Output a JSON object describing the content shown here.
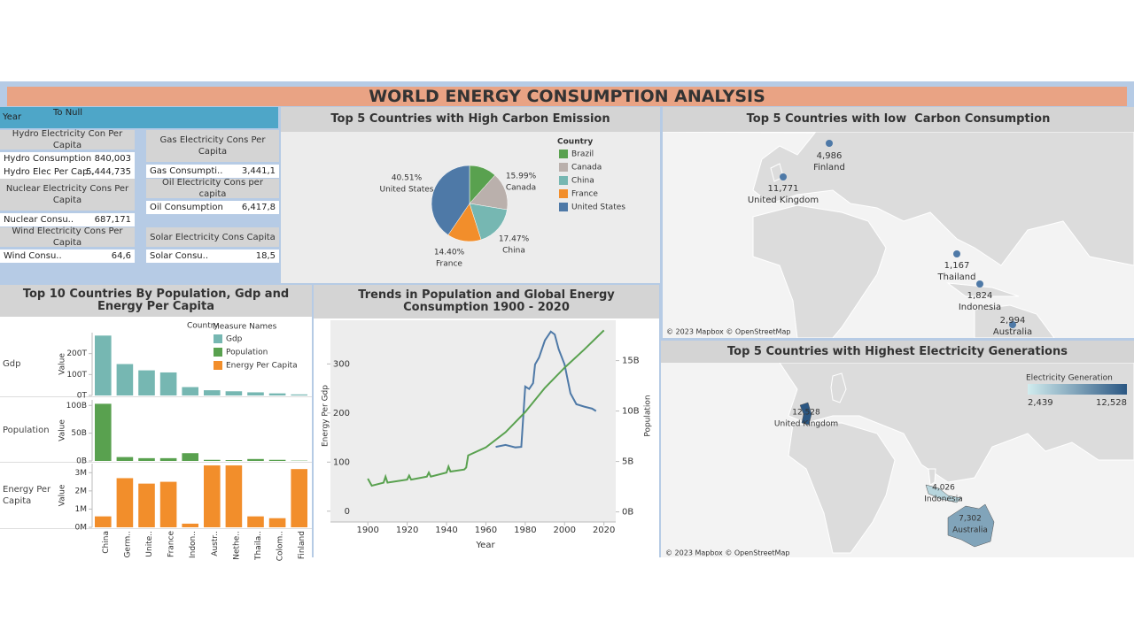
{
  "title": "WORLD ENERGY CONSUMPTION ANALYSIS",
  "filter": {
    "label": "Year",
    "value": "To Null"
  },
  "kpi_cards": [
    {
      "title": "Hydro Electricity Con Per Capita",
      "rows": [
        {
          "label": "Hydro Consumption",
          "value": "840,003"
        },
        {
          "label": "Hydro Elec Per Cap..",
          "value": "5,444,735"
        }
      ]
    },
    {
      "title": "Gas Electricity Cons Per Capita",
      "rows": [
        {
          "label": "Gas Consumpti..",
          "value": "3,441,1"
        }
      ]
    },
    {
      "title": "Nuclear Electricity Cons Per Capita",
      "rows": [
        {
          "label": "Nuclear Consu..",
          "value": "687,171"
        }
      ]
    },
    {
      "title": "Oil Electricity Cons per capita",
      "rows": [
        {
          "label": "Oil Consumption",
          "value": "6,417,8"
        }
      ]
    },
    {
      "title": "Wind Electricity Cons Per Capita",
      "rows": [
        {
          "label": "Wind Consu..",
          "value": "64,6"
        }
      ]
    },
    {
      "title": "Solar Electricity Cons Capita",
      "rows": [
        {
          "label": "Solar Consu..",
          "value": "18,5"
        }
      ]
    }
  ],
  "chart_data": [
    {
      "type": "pie",
      "title": "Top 5 Countries with High Carbon Emission",
      "legend_title": "Country",
      "categories": [
        "Brazil",
        "Canada",
        "China",
        "France",
        "United States"
      ],
      "values": [
        11.63,
        15.99,
        17.47,
        14.4,
        40.51
      ],
      "value_labels": [
        null,
        "15.99%",
        "17.47%",
        "14.40%",
        "40.51%"
      ],
      "colors": [
        "#59a14f",
        "#bab0ac",
        "#76b7b2",
        "#f28e2b",
        "#4e79a7"
      ]
    },
    {
      "type": "map",
      "map_style": "points",
      "title": "Top 5 Countries with low  Carbon Consumption",
      "categories": [
        "Finland",
        "United Kingdom",
        "Thailand",
        "Indonesia",
        "Australia"
      ],
      "values": [
        4986,
        11771,
        1167,
        1824,
        2994
      ],
      "value_labels": [
        "4,986",
        "11,771",
        "1,167",
        "1,824",
        "2,994"
      ],
      "color": "#4e79a7",
      "attribution": "© 2023 Mapbox © OpenStreetMap"
    },
    {
      "type": "bar",
      "title": "Top 10 Countries By Population, Gdp and Energy Per Capita",
      "column_header": "Country",
      "legend_title": "Measure Names",
      "y_label": "Value",
      "categories": [
        "China",
        "Germ..",
        "Unite..",
        "France",
        "Indon..",
        "Austr..",
        "Nethe..",
        "Thaila..",
        "Colom..",
        "Finland"
      ],
      "series": [
        {
          "name": "Gdp",
          "color": "#76b7b2",
          "values": [
            286,
            150,
            120,
            110,
            40,
            25,
            20,
            15,
            10,
            5
          ],
          "ylim": [
            0,
            300
          ],
          "yticks": [
            {
              "value": 0,
              "label": "0T"
            },
            {
              "value": 100,
              "label": "100T"
            },
            {
              "value": 200,
              "label": "200T"
            }
          ]
        },
        {
          "name": "Population",
          "color": "#59a14f",
          "values": [
            103,
            7,
            5,
            5,
            14,
            2,
            1.5,
            3.5,
            2,
            0.5
          ],
          "ylim": [
            0,
            110
          ],
          "yticks": [
            {
              "value": 0,
              "label": "0B"
            },
            {
              "value": 50,
              "label": "50B"
            },
            {
              "value": 100,
              "label": "100B"
            }
          ]
        },
        {
          "name": "Energy Per Capita",
          "color": "#f28e2b",
          "values": [
            0.6,
            2.7,
            2.4,
            2.5,
            0.2,
            3.4,
            3.4,
            0.6,
            0.5,
            3.2
          ],
          "ylim": [
            0,
            3.5
          ],
          "yticks": [
            {
              "value": 0,
              "label": "0M"
            },
            {
              "value": 1,
              "label": "1M"
            },
            {
              "value": 2,
              "label": "2M"
            },
            {
              "value": 3,
              "label": "3M"
            }
          ]
        }
      ]
    },
    {
      "type": "line",
      "title": "Trends in Population and Global Energy Consumption 1900 - 2020",
      "x_label": "Year",
      "xlim": [
        1881,
        2026
      ],
      "xticks": [
        1900,
        1920,
        1940,
        1960,
        1980,
        2000,
        2020
      ],
      "ylim": [
        -22,
        389
      ],
      "yticks": [
        0,
        100,
        200,
        300
      ],
      "y2lim": [
        -1,
        19
      ],
      "y2ticks": [
        {
          "value": 0,
          "label": "0B"
        },
        {
          "value": 5,
          "label": "5B"
        },
        {
          "value": 10,
          "label": "10B"
        },
        {
          "value": 15,
          "label": "15B"
        }
      ],
      "series": [
        {
          "name": "Energy Per Gdp",
          "color": "#4e79a7",
          "x": [
            1965,
            1970,
            1975,
            1978,
            1980,
            1982,
            1984,
            1985,
            1987,
            1990,
            1993,
            1995,
            1997,
            2000,
            2003,
            2006,
            2010,
            2014,
            2016
          ],
          "values": [
            131,
            135,
            130,
            131,
            254,
            249,
            261,
            299,
            313,
            348,
            366,
            360,
            330,
            299,
            240,
            218,
            213,
            209,
            204
          ]
        },
        {
          "name": "Population",
          "axis": "y2",
          "color": "#59a14f",
          "x": [
            1900,
            1902,
            1908,
            1909,
            1910,
            1920,
            1921,
            1922,
            1930,
            1931,
            1932,
            1940,
            1941,
            1942,
            1949,
            1950,
            1951,
            1960,
            1970,
            1980,
            1990,
            2000,
            2010,
            2020
          ],
          "values": [
            3.3,
            2.6,
            2.9,
            3.5,
            2.9,
            3.2,
            3.6,
            3.2,
            3.5,
            3.9,
            3.5,
            3.9,
            4.5,
            4.0,
            4.2,
            4.4,
            5.6,
            6.4,
            7.9,
            9.9,
            12.3,
            14.3,
            16.1,
            18.0
          ]
        }
      ]
    },
    {
      "type": "map",
      "map_style": "filled",
      "title": "Top 5 Countries with Highest Electricity Generations",
      "legend_title": "Electricity Generation",
      "categories": [
        "United Kingdom",
        "Indonesia",
        "Australia"
      ],
      "values": [
        12528,
        4026,
        7302
      ],
      "value_labels": [
        "12,528",
        "4,026",
        "7,302"
      ],
      "color_range": [
        {
          "value": 2439,
          "label": "2,439"
        },
        {
          "value": 12528,
          "label": "12,528"
        }
      ],
      "colors": [
        "#d1ecee",
        "#2b5783"
      ],
      "attribution": "© 2023 Mapbox © OpenStreetMap"
    }
  ]
}
